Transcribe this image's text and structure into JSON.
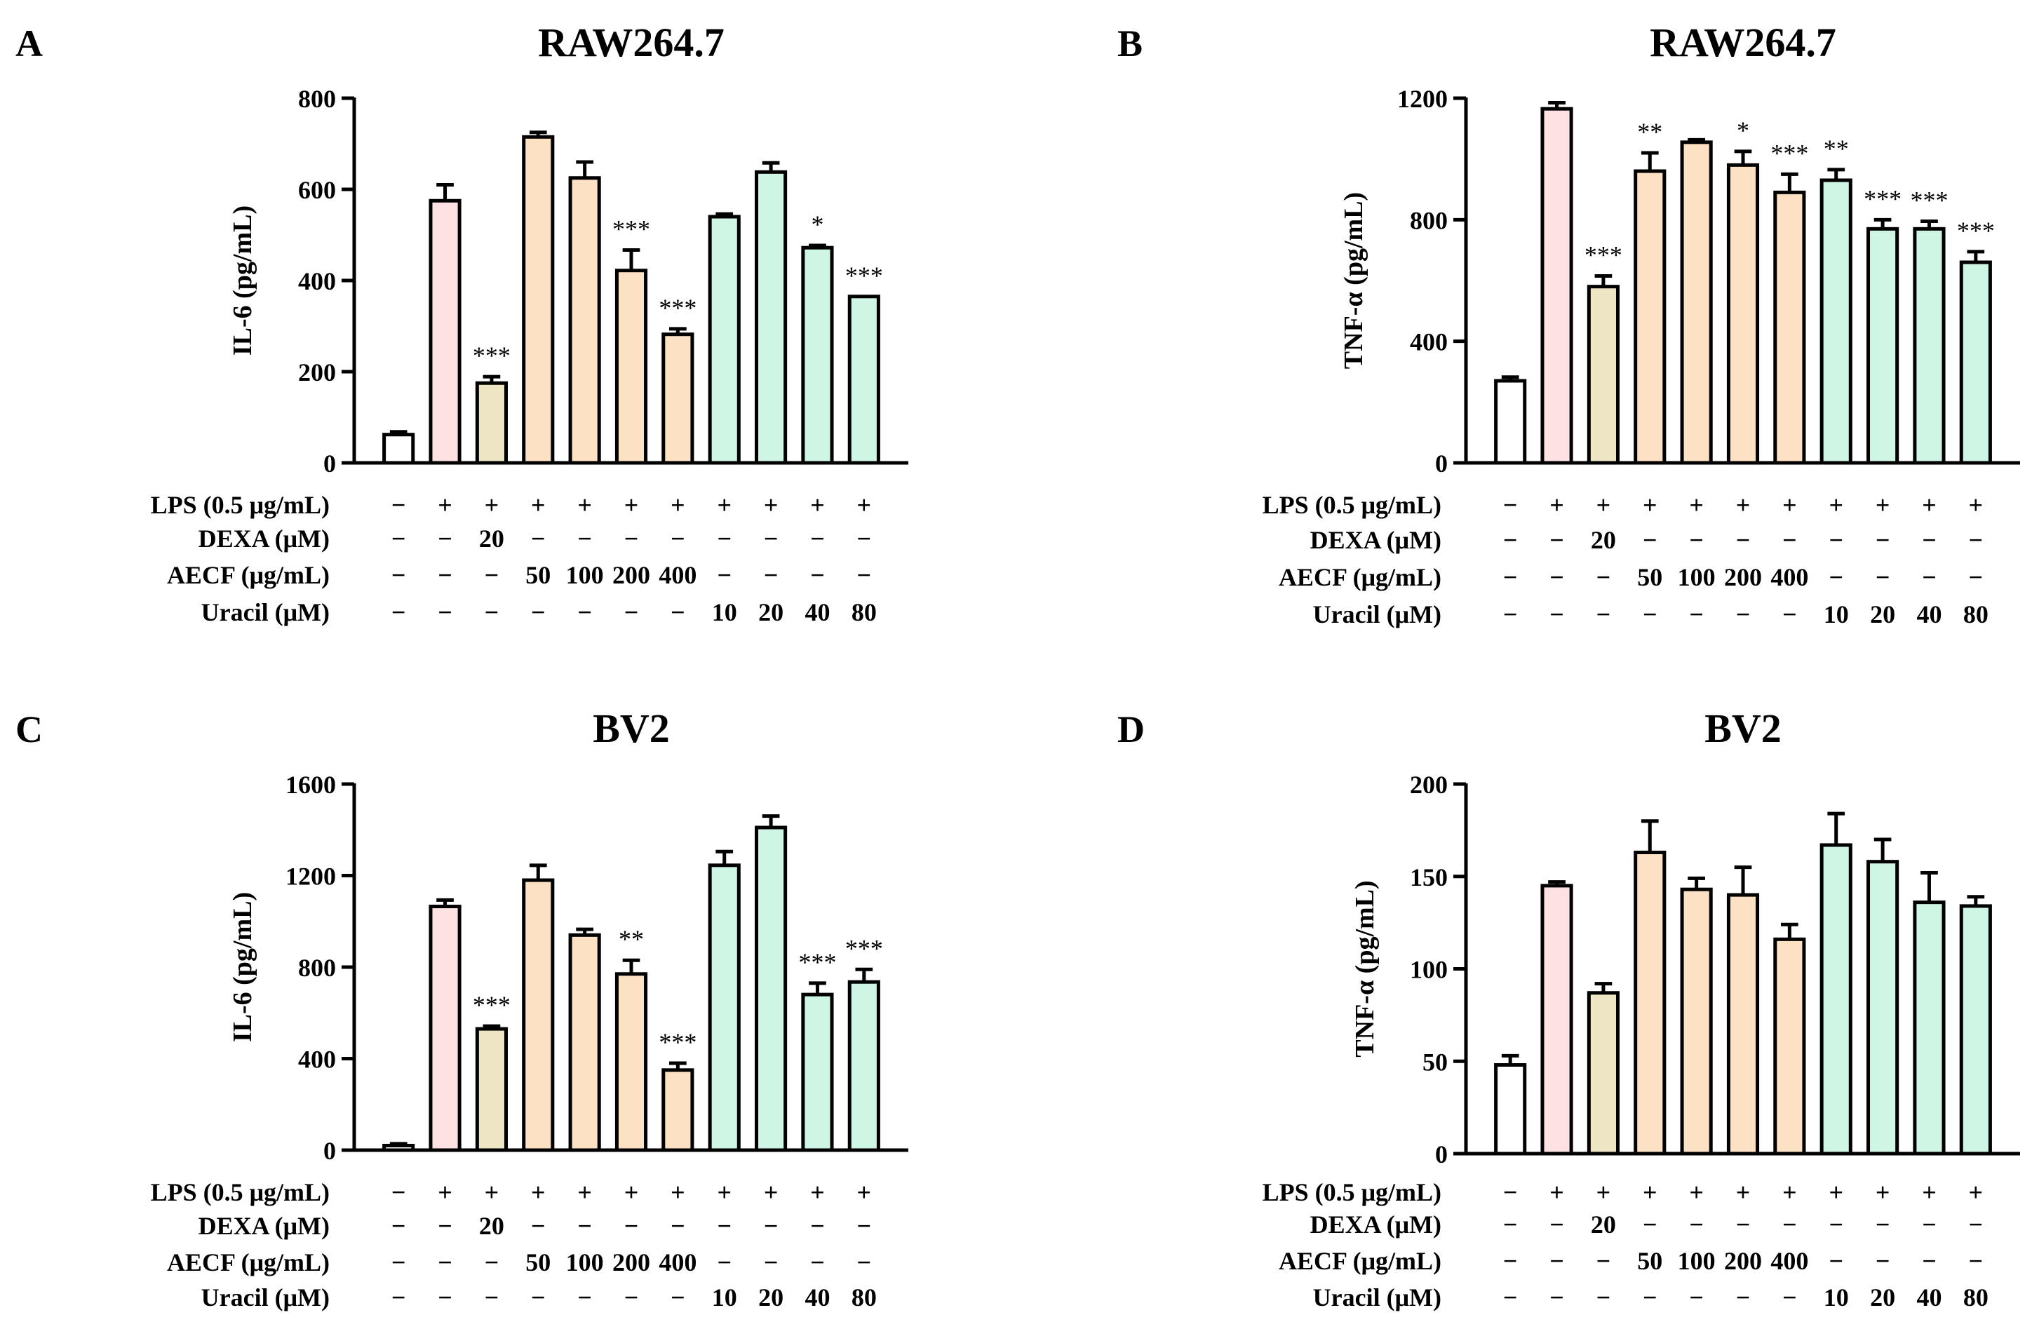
{
  "chart_data": [
    {
      "panel": "A",
      "type": "bar",
      "title": "RAW264.7",
      "ylabel": "IL-6 (pg/mL)",
      "ylim": [
        0,
        800
      ],
      "yticks": [
        0,
        200,
        400,
        600,
        800
      ],
      "values": [
        62,
        575,
        175,
        715,
        625,
        422,
        282,
        540,
        638,
        472,
        365
      ],
      "errors": [
        6,
        35,
        14,
        10,
        35,
        45,
        12,
        6,
        20,
        5,
        0
      ],
      "significance": [
        "",
        "",
        "***",
        "",
        "",
        "***",
        "***",
        "",
        "",
        "*",
        "***"
      ],
      "colors": [
        "#ffffff",
        "#fde1e3",
        "#ede5c3",
        "#fde1c4",
        "#fde1c4",
        "#fde1c4",
        "#fde1c4",
        "#cff5e4",
        "#cff5e4",
        "#cff5e4",
        "#cff5e4"
      ],
      "conditions": [
        {
          "label": "LPS (0.5 μg/mL)",
          "values": [
            "−",
            "+",
            "+",
            "+",
            "+",
            "+",
            "+",
            "+",
            "+",
            "+",
            "+"
          ]
        },
        {
          "label": "DEXA (μM)",
          "values": [
            "−",
            "−",
            "20",
            "−",
            "−",
            "−",
            "−",
            "−",
            "−",
            "−",
            "−"
          ]
        },
        {
          "label": "AECF (μg/mL)",
          "values": [
            "−",
            "−",
            "−",
            "50",
            "100",
            "200",
            "400",
            "−",
            "−",
            "−",
            "−"
          ]
        },
        {
          "label": "Uracil (μM)",
          "values": [
            "−",
            "−",
            "−",
            "−",
            "−",
            "−",
            "−",
            "10",
            "20",
            "40",
            "80"
          ]
        }
      ]
    },
    {
      "panel": "B",
      "type": "bar",
      "title": "RAW264.7",
      "ylabel": "TNF-α (pg/mL)",
      "ylim": [
        0,
        1200
      ],
      "yticks": [
        0,
        400,
        800,
        1200
      ],
      "values": [
        270,
        1165,
        580,
        960,
        1055,
        980,
        890,
        930,
        770,
        770,
        660
      ],
      "errors": [
        12,
        20,
        35,
        60,
        8,
        45,
        60,
        35,
        30,
        25,
        35
      ],
      "significance": [
        "",
        "",
        "***",
        "**",
        "",
        "*",
        "***",
        "**",
        "***",
        "***",
        "***"
      ],
      "colors": [
        "#ffffff",
        "#fde1e3",
        "#ede5c3",
        "#fde1c4",
        "#fde1c4",
        "#fde1c4",
        "#fde1c4",
        "#cff5e4",
        "#cff5e4",
        "#cff5e4",
        "#cff5e4"
      ],
      "conditions": [
        {
          "label": "LPS (0.5 μg/mL)",
          "values": [
            "−",
            "+",
            "+",
            "+",
            "+",
            "+",
            "+",
            "+",
            "+",
            "+",
            "+"
          ]
        },
        {
          "label": "DEXA (μM)",
          "values": [
            "−",
            "−",
            "20",
            "−",
            "−",
            "−",
            "−",
            "−",
            "−",
            "−",
            "−"
          ]
        },
        {
          "label": "AECF (μg/mL)",
          "values": [
            "−",
            "−",
            "−",
            "50",
            "100",
            "200",
            "400",
            "−",
            "−",
            "−",
            "−"
          ]
        },
        {
          "label": "Uracil (μM)",
          "values": [
            "−",
            "−",
            "−",
            "−",
            "−",
            "−",
            "−",
            "10",
            "20",
            "40",
            "80"
          ]
        }
      ]
    },
    {
      "panel": "C",
      "type": "bar",
      "title": "BV2",
      "ylabel": "IL-6 (pg/mL)",
      "ylim": [
        0,
        1600
      ],
      "yticks": [
        0,
        400,
        800,
        1200,
        1600
      ],
      "values": [
        20,
        1065,
        530,
        1180,
        940,
        770,
        350,
        1245,
        1410,
        680,
        735
      ],
      "errors": [
        8,
        28,
        12,
        65,
        25,
        60,
        30,
        60,
        50,
        50,
        55
      ],
      "significance": [
        "",
        "",
        "***",
        "",
        "",
        "**",
        "***",
        "",
        "",
        "***",
        "***"
      ],
      "colors": [
        "#ffffff",
        "#fde1e3",
        "#ede5c3",
        "#fde1c4",
        "#fde1c4",
        "#fde1c4",
        "#fde1c4",
        "#cff5e4",
        "#cff5e4",
        "#cff5e4",
        "#cff5e4"
      ],
      "conditions": [
        {
          "label": "LPS (0.5 μg/mL)",
          "values": [
            "−",
            "+",
            "+",
            "+",
            "+",
            "+",
            "+",
            "+",
            "+",
            "+",
            "+"
          ]
        },
        {
          "label": "DEXA (μM)",
          "values": [
            "−",
            "−",
            "20",
            "−",
            "−",
            "−",
            "−",
            "−",
            "−",
            "−",
            "−"
          ]
        },
        {
          "label": "AECF (μg/mL)",
          "values": [
            "−",
            "−",
            "−",
            "50",
            "100",
            "200",
            "400",
            "−",
            "−",
            "−",
            "−"
          ]
        },
        {
          "label": "Uracil (μM)",
          "values": [
            "−",
            "−",
            "−",
            "−",
            "−",
            "−",
            "−",
            "10",
            "20",
            "40",
            "80"
          ]
        }
      ]
    },
    {
      "panel": "D",
      "type": "bar",
      "title": "BV2",
      "ylabel": "TNF-α (pg/mL)",
      "ylim": [
        0,
        200
      ],
      "yticks": [
        0,
        50,
        100,
        150,
        200
      ],
      "values": [
        48,
        145,
        87,
        163,
        143,
        140,
        116,
        167,
        158,
        136,
        134
      ],
      "errors": [
        5,
        2,
        5,
        17,
        6,
        15,
        8,
        17,
        12,
        16,
        5
      ],
      "significance": [
        "",
        "",
        "",
        "",
        "",
        "",
        "",
        "",
        "",
        "",
        ""
      ],
      "colors": [
        "#ffffff",
        "#fde1e3",
        "#ede5c3",
        "#fde1c4",
        "#fde1c4",
        "#fde1c4",
        "#fde1c4",
        "#cff5e4",
        "#cff5e4",
        "#cff5e4",
        "#cff5e4"
      ],
      "conditions": [
        {
          "label": "LPS (0.5 μg/mL)",
          "values": [
            "−",
            "+",
            "+",
            "+",
            "+",
            "+",
            "+",
            "+",
            "+",
            "+",
            "+"
          ]
        },
        {
          "label": "DEXA (μM)",
          "values": [
            "−",
            "−",
            "20",
            "−",
            "−",
            "−",
            "−",
            "−",
            "−",
            "−",
            "−"
          ]
        },
        {
          "label": "AECF (μg/mL)",
          "values": [
            "−",
            "−",
            "−",
            "50",
            "100",
            "200",
            "400",
            "−",
            "−",
            "−",
            "−"
          ]
        },
        {
          "label": "Uracil (μM)",
          "values": [
            "−",
            "−",
            "−",
            "−",
            "−",
            "−",
            "−",
            "10",
            "20",
            "40",
            "80"
          ]
        }
      ]
    }
  ]
}
